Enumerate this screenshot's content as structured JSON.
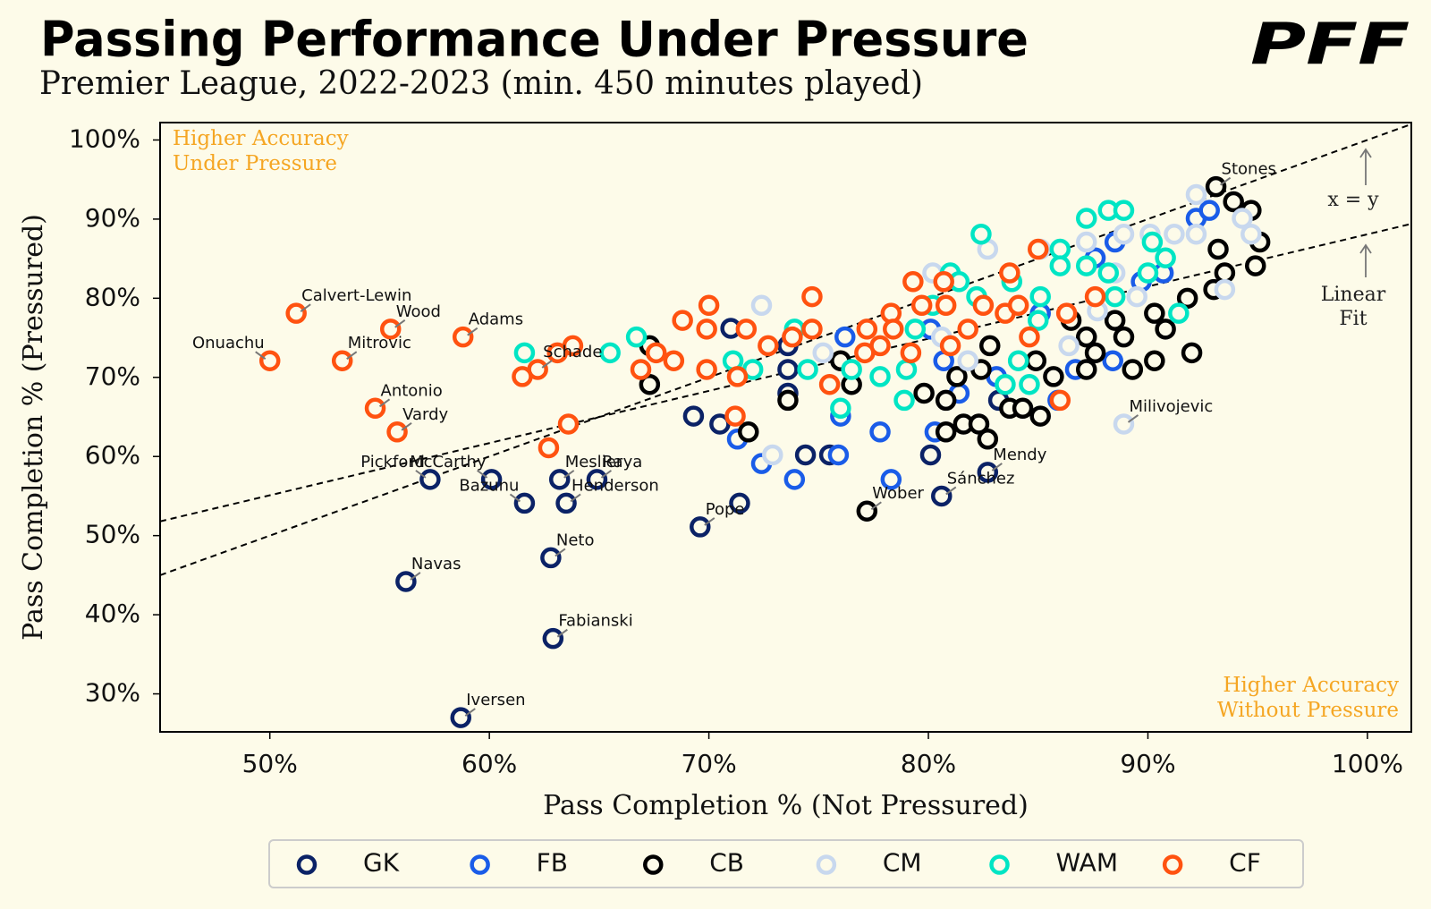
{
  "logo": "PFF",
  "chart_data": {
    "type": "scatter",
    "title": "Passing Performance Under Pressure",
    "subtitle": "Premier League, 2022-2023 (min. 450 minutes played)",
    "xlabel": "Pass Completion % (Not Pressured)",
    "ylabel": "Pass Completion % (Pressured)",
    "xlim": [
      45,
      102
    ],
    "ylim": [
      25.2,
      102.2
    ],
    "xticks": [
      {
        "value": 50,
        "label": "50%"
      },
      {
        "value": 60,
        "label": "60%"
      },
      {
        "value": 70,
        "label": "70%"
      },
      {
        "value": 80,
        "label": "80%"
      },
      {
        "value": 90,
        "label": "90%"
      },
      {
        "value": 100,
        "label": "100%"
      }
    ],
    "yticks": [
      {
        "value": 30,
        "label": "30%"
      },
      {
        "value": 40,
        "label": "40%"
      },
      {
        "value": 50,
        "label": "50%"
      },
      {
        "value": 60,
        "label": "60%"
      },
      {
        "value": 70,
        "label": "70%"
      },
      {
        "value": 80,
        "label": "80%"
      },
      {
        "value": 90,
        "label": "90%"
      },
      {
        "value": 100,
        "label": "100%"
      }
    ],
    "annotations": [
      {
        "text": "Higher Accuracy Under Pressure",
        "corner": "top-left",
        "color": "#f5a623"
      },
      {
        "text": "Higher Accuracy Without Pressure",
        "corner": "bottom-right",
        "color": "#f5a623"
      }
    ],
    "reference_lines": [
      {
        "label": "x = y",
        "x": [
          45,
          102
        ],
        "y": [
          45,
          102
        ]
      },
      {
        "label": "Linear Fit",
        "x": [
          45,
          102
        ],
        "y": [
          51.8,
          89.4
        ]
      }
    ],
    "legend": "bottom",
    "series": [
      {
        "name": "GK",
        "color": "#0b2266",
        "x": [
          57.3,
          60.1,
          63.2,
          64.9,
          61.6,
          63.5,
          69.6,
          62.8,
          56.2,
          62.9,
          58.7,
          82.7,
          80.6,
          69.3,
          70.5,
          71.0,
          71.4,
          73.6,
          73.6,
          73.6,
          74.4,
          75.5,
          80.1,
          83.2
        ],
        "values": [
          57.1,
          57.1,
          57.1,
          57.1,
          54.1,
          54.1,
          51.1,
          47.2,
          44.2,
          37.0,
          27.0,
          58.0,
          55.0,
          65.1,
          64.1,
          76.2,
          54.1,
          74.0,
          71.0,
          68.0,
          60.2,
          60.2,
          60.2,
          67.1
        ],
        "labels": [
          "Pickford",
          "McCarthy",
          "Meslier",
          "Raya",
          "Bazunu",
          "Henderson",
          "Pope",
          "Neto",
          "Navas",
          "Fabianski",
          "Iversen",
          "Mendy",
          "Sánchez",
          null,
          null,
          null,
          null,
          null,
          null,
          null,
          null,
          null,
          null,
          null
        ]
      },
      {
        "name": "FB",
        "color": "#1a5ce8",
        "x": [
          76.0,
          75.9,
          77.8,
          78.3,
          73.9,
          72.4,
          71.3,
          80.3,
          80.7,
          81.4,
          83.1,
          85.9,
          86.7,
          88.4,
          87.6,
          88.5,
          89.7,
          92.2,
          92.8,
          80.1,
          85.1,
          90.7,
          76.2
        ],
        "values": [
          65.1,
          60.2,
          63.1,
          57.1,
          57.1,
          59.1,
          62.2,
          63.1,
          72.1,
          68.0,
          70.1,
          67.1,
          71.0,
          72.1,
          85.1,
          87.1,
          82.1,
          90.1,
          91.1,
          76.1,
          78.1,
          83.2,
          75.1
        ]
      },
      {
        "name": "CB",
        "color": "#000000",
        "x": [
          93.1,
          77.2,
          67.3,
          67.3,
          71.8,
          73.6,
          76.0,
          76.5,
          79.8,
          80.8,
          80.8,
          81.6,
          82.3,
          82.7,
          81.3,
          82.4,
          82.8,
          83.7,
          84.3,
          85.1,
          84.9,
          85.7,
          87.2,
          87.2,
          87.6,
          88.9,
          89.3,
          90.3,
          90.8,
          90.3,
          91.8,
          92.0,
          93.0,
          93.5,
          93.2,
          93.9,
          94.7,
          94.9,
          95.1,
          88.5,
          86.5
        ],
        "values": [
          94.1,
          53.1,
          74.0,
          69.1,
          63.1,
          67.1,
          72.1,
          69.1,
          68.0,
          67.1,
          63.1,
          64.1,
          64.1,
          62.2,
          70.1,
          71.0,
          74.0,
          66.1,
          66.1,
          65.1,
          72.1,
          70.1,
          75.1,
          71.0,
          73.1,
          75.1,
          71.0,
          72.1,
          76.1,
          78.1,
          80.0,
          73.1,
          81.1,
          83.2,
          86.2,
          92.2,
          91.1,
          84.1,
          87.1,
          77.2,
          77.2
        ],
        "labels": [
          "Stones",
          "Wober",
          null,
          null,
          null,
          null,
          null,
          null,
          null,
          null,
          null,
          null,
          null,
          null,
          null,
          null,
          null,
          null,
          null,
          null,
          null,
          null,
          null,
          null,
          null,
          null,
          null,
          null,
          null,
          null,
          null,
          null,
          null,
          null,
          null,
          null,
          null,
          null,
          null,
          null,
          null
        ]
      },
      {
        "name": "CM",
        "color": "#c8d8ee",
        "x": [
          88.9,
          72.4,
          72.9,
          75.2,
          80.2,
          81.8,
          82.7,
          85.1,
          86.4,
          87.2,
          88.9,
          90.1,
          91.2,
          92.2,
          92.2,
          93.5,
          94.3,
          94.7,
          88.5,
          89.5,
          87.7,
          80.6
        ],
        "values": [
          64.1,
          79.1,
          60.2,
          73.1,
          83.2,
          72.1,
          86.2,
          86.2,
          74.0,
          87.1,
          88.1,
          88.1,
          88.1,
          93.1,
          88.1,
          81.1,
          90.1,
          88.1,
          83.2,
          80.2,
          78.4,
          75.1
        ],
        "labels": [
          "Milivojevic",
          null,
          null,
          null,
          null,
          null,
          null,
          null,
          null,
          null,
          null,
          null,
          null,
          null,
          null,
          null,
          null,
          null,
          null,
          null,
          null,
          null
        ]
      },
      {
        "name": "WAM",
        "color": "#00e5c4",
        "x": [
          61.6,
          65.5,
          66.7,
          71.1,
          72.0,
          73.9,
          74.5,
          76.0,
          76.5,
          77.8,
          78.9,
          79.0,
          79.4,
          80.2,
          81.0,
          81.4,
          82.4,
          82.2,
          83.5,
          84.1,
          84.6,
          85.0,
          86.0,
          86.0,
          87.2,
          87.2,
          88.2,
          88.9,
          88.2,
          88.5,
          90.2,
          90.0,
          90.8,
          91.4,
          83.8,
          85.1
        ],
        "values": [
          73.1,
          73.1,
          75.1,
          72.1,
          71.0,
          76.1,
          71.0,
          66.1,
          71.0,
          70.1,
          67.1,
          71.0,
          76.1,
          79.1,
          83.2,
          82.1,
          88.1,
          80.2,
          69.1,
          72.1,
          69.1,
          77.2,
          86.2,
          84.1,
          90.1,
          84.1,
          91.1,
          91.1,
          83.2,
          80.2,
          87.1,
          83.2,
          85.1,
          78.1,
          82.1,
          80.2
        ]
      },
      {
        "name": "CF",
        "color": "#ff5210",
        "x": [
          51.2,
          55.5,
          58.8,
          50.0,
          53.3,
          54.8,
          55.8,
          62.2,
          61.5,
          62.7,
          63.1,
          63.8,
          63.6,
          66.9,
          67.6,
          68.4,
          68.8,
          69.9,
          69.9,
          70.0,
          71.3,
          71.2,
          71.7,
          72.7,
          73.8,
          74.7,
          74.7,
          75.5,
          77.1,
          77.2,
          77.8,
          78.3,
          78.4,
          79.2,
          79.3,
          79.7,
          80.7,
          80.8,
          81.0,
          81.8,
          82.5,
          83.7,
          83.5,
          84.1,
          84.6,
          85.0,
          86.0,
          86.3,
          87.6
        ],
        "values": [
          78.1,
          76.1,
          75.1,
          72.1,
          72.1,
          66.1,
          63.1,
          71.0,
          70.1,
          61.1,
          73.1,
          74.0,
          64.1,
          71.0,
          73.1,
          72.1,
          77.2,
          71.0,
          76.1,
          79.1,
          70.1,
          65.1,
          76.1,
          74.0,
          75.1,
          80.2,
          76.1,
          69.1,
          73.1,
          76.1,
          74.0,
          78.1,
          76.1,
          73.1,
          82.1,
          79.1,
          82.1,
          79.1,
          74.0,
          76.1,
          79.1,
          83.2,
          78.1,
          79.1,
          75.1,
          86.2,
          67.1,
          78.1,
          80.2
        ],
        "labels": [
          "Calvert-Lewin",
          "Wood",
          "Adams",
          "Onuachu",
          "Mitrovic",
          "Antonio",
          "Vardy",
          "Schade",
          null,
          null,
          null,
          null,
          null,
          null,
          null,
          null,
          null,
          null,
          null,
          null,
          null,
          null,
          null,
          null,
          null,
          null,
          null,
          null,
          null,
          null,
          null,
          null,
          null,
          null,
          null,
          null,
          null,
          null,
          null,
          null,
          null,
          null,
          null,
          null,
          null,
          null,
          null,
          null,
          null
        ]
      }
    ]
  }
}
